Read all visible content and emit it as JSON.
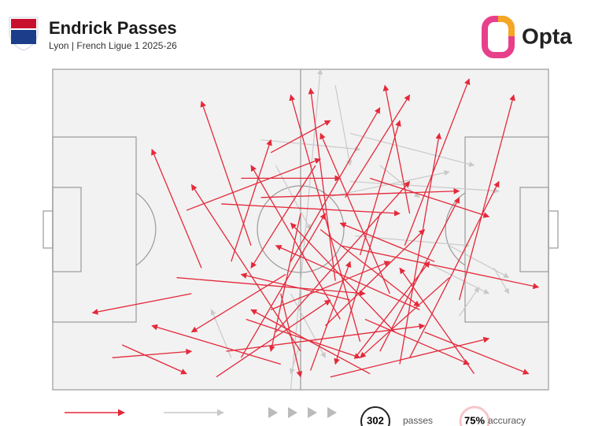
{
  "chart_data": {
    "type": "pass-map",
    "title": "Endrick Passes",
    "subtitle": "Lyon | French Ligue 1 2025-26",
    "brand": "Opta",
    "xlim": [
      0,
      100
    ],
    "ylim": [
      0,
      100
    ],
    "completed_color": "#e4293a",
    "incomplete_color": "#c9c9c9",
    "completed": [
      [
        50,
        88,
        28,
        36
      ],
      [
        38,
        90,
        55,
        45
      ],
      [
        62,
        85,
        48,
        8
      ],
      [
        70,
        92,
        78,
        20
      ],
      [
        55,
        80,
        75,
        50
      ],
      [
        44,
        75,
        68,
        60
      ],
      [
        30,
        62,
        20,
        25
      ],
      [
        45,
        82,
        72,
        35
      ],
      [
        66,
        88,
        82,
        40
      ],
      [
        58,
        78,
        40,
        30
      ],
      [
        60,
        72,
        38,
        64
      ],
      [
        72,
        90,
        90,
        35
      ],
      [
        52,
        94,
        60,
        60
      ],
      [
        35,
        88,
        75,
        80
      ],
      [
        64,
        95,
        40,
        75
      ],
      [
        48,
        60,
        66,
        12
      ],
      [
        57,
        66,
        52,
        6
      ],
      [
        40,
        55,
        30,
        10
      ],
      [
        34,
        42,
        70,
        45
      ],
      [
        68,
        70,
        54,
        20
      ],
      [
        75,
        82,
        96,
        95
      ],
      [
        80,
        65,
        62,
        90
      ],
      [
        46,
        92,
        20,
        80
      ],
      [
        25,
        65,
        63,
        70
      ],
      [
        14,
        86,
        27,
        95
      ],
      [
        12,
        90,
        28,
        88
      ],
      [
        28,
        70,
        8,
        76
      ],
      [
        54,
        50,
        74,
        74
      ],
      [
        62,
        58,
        70,
        16
      ],
      [
        42,
        40,
        82,
        38
      ],
      [
        71,
        55,
        84,
        3
      ],
      [
        77,
        60,
        58,
        48
      ],
      [
        59,
        40,
        72,
        8
      ],
      [
        38,
        34,
        58,
        34
      ],
      [
        53,
        30,
        40,
        62
      ],
      [
        66,
        45,
        57,
        92
      ],
      [
        74,
        75,
        45,
        55
      ],
      [
        82,
        72,
        93,
        8
      ],
      [
        46,
        70,
        50,
        96
      ],
      [
        61,
        90,
        76,
        60
      ],
      [
        69,
        82,
        48,
        48
      ],
      [
        56,
        96,
        88,
        84
      ],
      [
        39,
        78,
        62,
        90
      ],
      [
        33,
        96,
        56,
        72
      ],
      [
        85,
        95,
        70,
        62
      ],
      [
        50,
        45,
        44,
        88
      ],
      [
        64,
        34,
        88,
        46
      ],
      [
        27,
        44,
        54,
        28
      ],
      [
        36,
        60,
        44,
        22
      ],
      [
        72,
        45,
        67,
        5
      ],
      [
        58,
        55,
        98,
        68
      ],
      [
        44,
        26,
        56,
        16
      ],
      [
        47,
        64,
        28,
        82
      ],
      [
        63,
        78,
        84,
        92
      ]
    ],
    "incomplete": [
      [
        42,
        22,
        62,
        25
      ],
      [
        60,
        20,
        85,
        30
      ],
      [
        75,
        60,
        88,
        70
      ],
      [
        55,
        40,
        80,
        32
      ],
      [
        50,
        85,
        48,
        95
      ],
      [
        61,
        52,
        84,
        55
      ],
      [
        57,
        5,
        60,
        30
      ],
      [
        60,
        35,
        90,
        38
      ],
      [
        80,
        55,
        92,
        65
      ],
      [
        45,
        30,
        52,
        50
      ],
      [
        89,
        62,
        92,
        70
      ],
      [
        48,
        70,
        55,
        90
      ],
      [
        48,
        100,
        54,
        0
      ],
      [
        36,
        90,
        32,
        75
      ],
      [
        82,
        77,
        86,
        68
      ],
      [
        66,
        30,
        74,
        40
      ]
    ],
    "legend": {
      "stat_passes": "302",
      "passes_label": "passes",
      "stat_accuracy": "75%",
      "accuracy_label": "accuracy"
    }
  }
}
